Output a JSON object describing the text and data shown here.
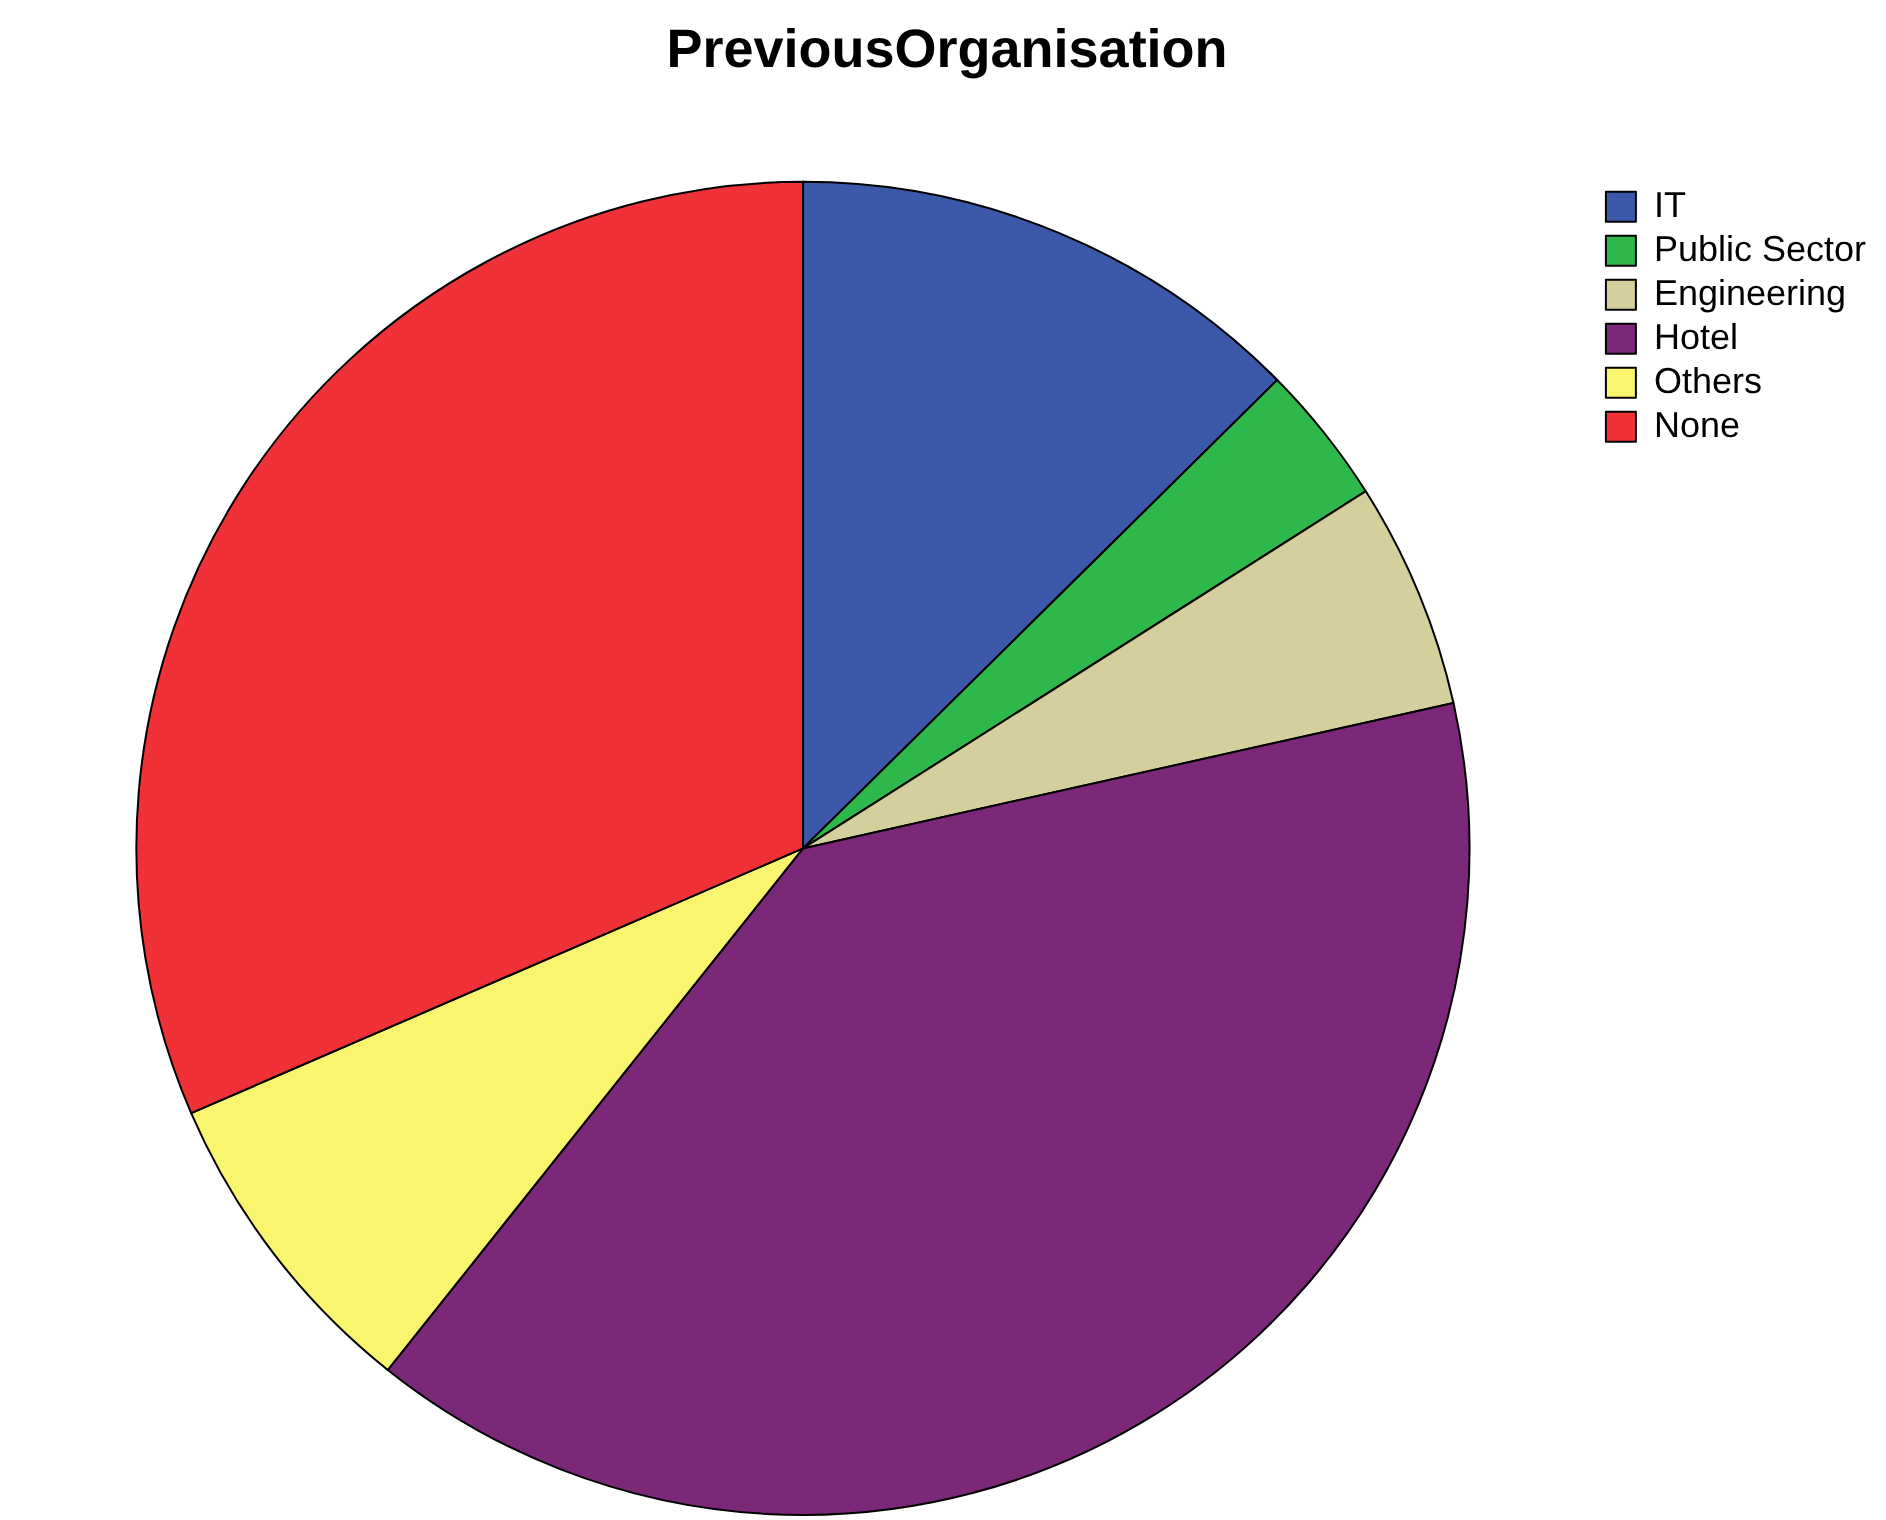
{
  "chart_data": {
    "type": "pie",
    "title": "PreviousOrganisation",
    "categories": [
      "IT",
      "Public Sector",
      "Engineering",
      "Hotel",
      "Others",
      "None"
    ],
    "values": [
      12.6,
      3.4,
      5.5,
      39.2,
      7.8,
      31.5
    ],
    "colors": [
      "#3c58a9",
      "#2eb84b",
      "#d4cf9c",
      "#7b2879",
      "#faf56f",
      "#f03238"
    ],
    "legend": "top right"
  }
}
